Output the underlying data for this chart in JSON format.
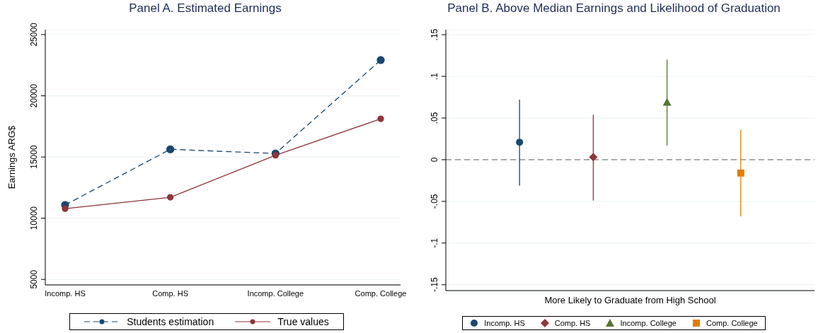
{
  "chart_data": [
    {
      "type": "line",
      "title": "Panel A. Estimated Earnings",
      "ylabel": "Earnings ARG$",
      "categories": [
        "Incomp. HS",
        "Comp. HS",
        "Incomp. College",
        "Comp. College"
      ],
      "series": [
        {
          "name": "Students estimation",
          "color": "#1a476f",
          "values": [
            11080,
            15630,
            15290,
            22920
          ],
          "line_style": "dashed"
        },
        {
          "name": "True values",
          "color": "#90353b",
          "values": [
            10780,
            11710,
            15140,
            18120
          ],
          "line_style": "solid"
        }
      ],
      "ylim": [
        4550,
        25400
      ],
      "yticks": [
        5000,
        10000,
        15000,
        20000,
        25000
      ],
      "grid": "y",
      "legend": "bottom",
      "marker": "circle"
    },
    {
      "type": "scatter",
      "title": "Panel B. Above Median Earnings and Likelihood of Graduation",
      "xlabel": "More Likely to Graduate from High School",
      "categories": [
        null,
        null,
        null,
        null
      ],
      "series": [
        {
          "name": "Incomp. HS",
          "color": "#1a476f",
          "marker": "circle",
          "values": [
            0.021,
            null,
            null,
            null
          ],
          "errors": [
            [
              -0.031,
              0.072
            ],
            null,
            null,
            null
          ]
        },
        {
          "name": "Comp. HS",
          "color": "#90353b",
          "marker": "diamond",
          "values": [
            null,
            0.003,
            null,
            null
          ],
          "errors": [
            null,
            [
              -0.049,
              0.054
            ],
            null,
            null
          ]
        },
        {
          "name": "Incomp. College",
          "color": "#55752f",
          "marker": "triangle",
          "values": [
            null,
            null,
            0.069,
            null
          ],
          "errors": [
            null,
            null,
            [
              0.017,
              0.12
            ],
            null
          ]
        },
        {
          "name": "Comp. College",
          "color": "#e37e00",
          "marker": "square",
          "values": [
            null,
            null,
            null,
            -0.016
          ],
          "errors": [
            null,
            null,
            null,
            [
              -0.068,
              0.036
            ]
          ]
        }
      ],
      "ylim": [
        -0.157,
        0.156
      ],
      "yticks": [
        {
          "value": -0.15,
          "label": "-.15"
        },
        {
          "value": -0.1,
          "label": "-.1"
        },
        {
          "value": -0.05,
          "label": "-.05"
        },
        0,
        {
          "value": 0.05,
          "label": ".05"
        },
        {
          "value": 0.1,
          "label": ".1"
        },
        {
          "value": 0.15,
          "label": ".15"
        }
      ],
      "grid": "y",
      "legend": "bottom",
      "ref_lines": [
        {
          "axis": "y",
          "value": 0,
          "color": "#7f7f7f",
          "line_style": "dashed"
        }
      ]
    }
  ]
}
